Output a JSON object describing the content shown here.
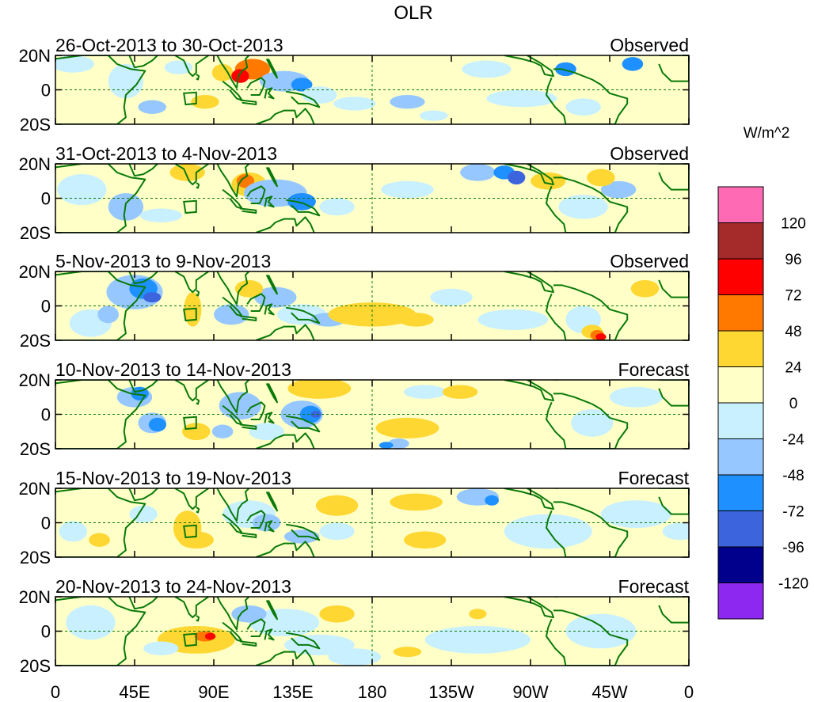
{
  "title": "OLR",
  "units_label": "W/m^2",
  "panels": [
    {
      "date_range": "26-Oct-2013 to 30-Oct-2013",
      "status": "Observed"
    },
    {
      "date_range": "31-Oct-2013 to 4-Nov-2013",
      "status": "Observed"
    },
    {
      "date_range": "5-Nov-2013 to 9-Nov-2013",
      "status": "Observed"
    },
    {
      "date_range": "10-Nov-2013 to 14-Nov-2013",
      "status": "Forecast"
    },
    {
      "date_range": "15-Nov-2013 to 19-Nov-2013",
      "status": "Forecast"
    },
    {
      "date_range": "20-Nov-2013 to 24-Nov-2013",
      "status": "Forecast"
    }
  ],
  "lat_labels": [
    "20N",
    "0",
    "20S"
  ],
  "lon_labels": [
    "0",
    "45E",
    "90E",
    "135E",
    "180",
    "135W",
    "90W",
    "45W",
    "0"
  ],
  "colorbar": {
    "labels": [
      "120",
      "96",
      "72",
      "48",
      "24",
      "0",
      "-24",
      "-48",
      "-72",
      "-96",
      "-120"
    ],
    "colors": [
      "#ff6ab4",
      "#a52a2a",
      "#ff0000",
      "#ff7800",
      "#ffd732",
      "#ffffc8",
      "#c8f0ff",
      "#96c8ff",
      "#1e90ff",
      "#3c64dc",
      "#00008c",
      "#8c28f0"
    ]
  },
  "colors": {
    "land_outline": "#0a7a0a",
    "box": "#0a7a0a",
    "panel_background": "#ffffc8"
  }
}
